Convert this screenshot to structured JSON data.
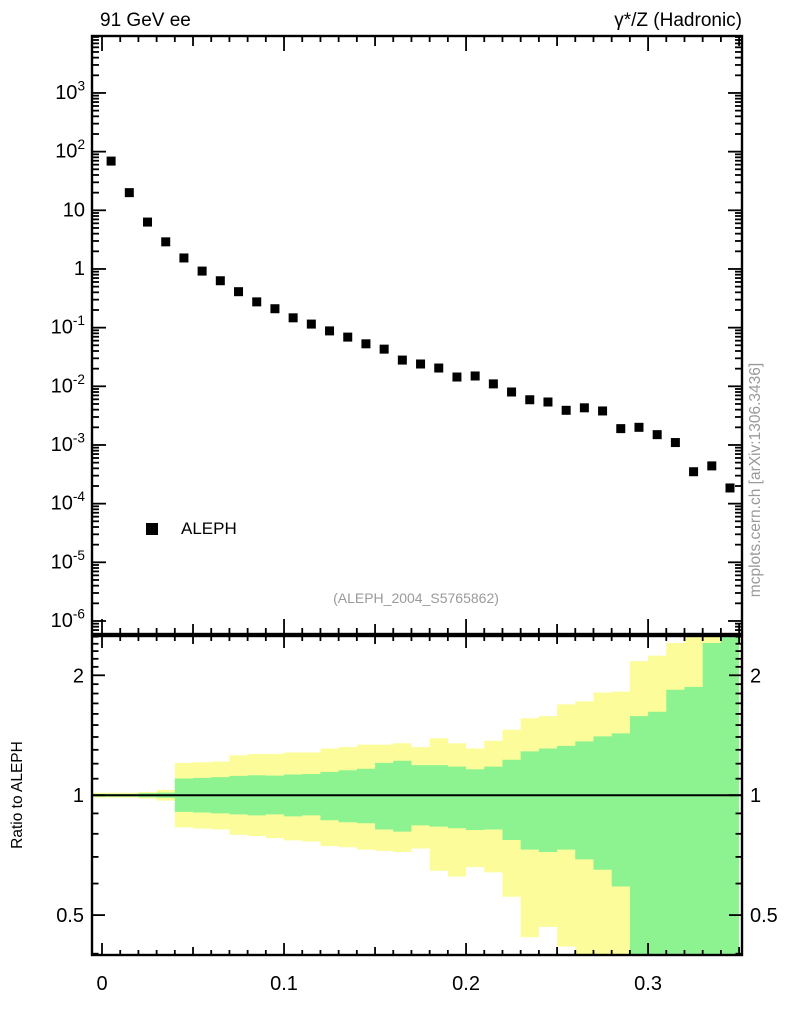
{
  "header": {
    "left_title": "91 GeV ee",
    "right_title": "γ*/Z (Hadronic)"
  },
  "legend": {
    "entries": [
      {
        "label": "ALEPH",
        "marker": "filled-square",
        "color": "#000000"
      }
    ]
  },
  "watermarks": {
    "analysis": "(ALEPH_2004_S5765862)",
    "mcplots": "mcplots.cern.ch [arXiv:1306.3436]"
  },
  "colors": {
    "data": "#000000",
    "frame": "#000000",
    "band_outer_yellow": "#fcfc9a",
    "band_inner_green": "#8df391",
    "muted_text": "#9a9a9a"
  },
  "chart_data": [
    {
      "type": "scatter",
      "panel": "main",
      "xscale": "linear",
      "yscale": "log",
      "xlim": [
        -0.0055,
        0.3516
      ],
      "ylim": [
        6e-07,
        9355
      ],
      "grid": false,
      "bin_width": 0.01,
      "xticks": [
        {
          "value": 0,
          "label": "0"
        },
        {
          "value": 0.1,
          "label": "0.1"
        },
        {
          "value": 0.2,
          "label": "0.2"
        },
        {
          "value": 0.3,
          "label": "0.3"
        }
      ],
      "yticks": [
        {
          "value": 1000,
          "label": "10^3"
        },
        {
          "value": 100,
          "label": "10^2"
        },
        {
          "value": 10,
          "label": "10"
        },
        {
          "value": 1,
          "label": "1"
        },
        {
          "value": 0.1,
          "label": "10^-1"
        },
        {
          "value": 0.01,
          "label": "10^-2"
        },
        {
          "value": 0.001,
          "label": "10^-3"
        },
        {
          "value": 0.0001,
          "label": "10^-4"
        },
        {
          "value": 1e-05,
          "label": "10^-5"
        },
        {
          "value": 1e-06,
          "label": "10^-6"
        }
      ],
      "series": [
        {
          "name": "ALEPH",
          "marker": "filled-square",
          "color": "#000000",
          "x": [
            0.005,
            0.015,
            0.025,
            0.035,
            0.045,
            0.055,
            0.065,
            0.075,
            0.085,
            0.095,
            0.105,
            0.115,
            0.125,
            0.135,
            0.145,
            0.155,
            0.165,
            0.175,
            0.185,
            0.195,
            0.205,
            0.215,
            0.225,
            0.235,
            0.245,
            0.255,
            0.265,
            0.275,
            0.285,
            0.295,
            0.305,
            0.315,
            0.325,
            0.335,
            0.345
          ],
          "y": [
            69,
            20,
            6.3,
            2.9,
            1.54,
            0.92,
            0.63,
            0.41,
            0.275,
            0.21,
            0.147,
            0.115,
            0.088,
            0.069,
            0.053,
            0.043,
            0.028,
            0.024,
            0.0205,
            0.0144,
            0.015,
            0.011,
            0.008,
            0.0059,
            0.0054,
            0.0039,
            0.0043,
            0.0038,
            0.0019,
            0.002,
            0.0015,
            0.0011,
            0.00035,
            0.00044,
            0.000185
          ]
        }
      ]
    },
    {
      "type": "area",
      "panel": "ratio",
      "ylabel": "Ratio to ALEPH",
      "yscale": "log",
      "ylim": [
        0.397,
        2.51
      ],
      "reference_line": 1,
      "yticks": [
        {
          "value": 2,
          "label": "2"
        },
        {
          "value": 1,
          "label": "1"
        },
        {
          "value": 0.5,
          "label": "0.5"
        }
      ],
      "bin_edges": [
        0,
        0.01,
        0.02,
        0.03,
        0.04,
        0.05,
        0.06,
        0.07,
        0.08,
        0.09,
        0.1,
        0.11,
        0.12,
        0.13,
        0.14,
        0.15,
        0.16,
        0.17,
        0.18,
        0.19,
        0.2,
        0.21,
        0.22,
        0.23,
        0.24,
        0.25,
        0.26,
        0.27,
        0.28,
        0.29,
        0.3,
        0.31,
        0.32,
        0.33,
        0.34,
        0.35
      ],
      "bands": [
        {
          "name": "outer-uncertainty-band",
          "color": "#fcfc9a",
          "lo": [
            0.986,
            0.986,
            0.981,
            0.969,
            0.83,
            0.825,
            0.82,
            0.795,
            0.79,
            0.78,
            0.77,
            0.765,
            0.745,
            0.74,
            0.73,
            0.725,
            0.72,
            0.735,
            0.646,
            0.625,
            0.66,
            0.64,
            0.556,
            0.44,
            0.467,
            0.417,
            0.35,
            0.35,
            0.35,
            0.35,
            0.35,
            0.35,
            0.35,
            0.35,
            0.35
          ],
          "hi": [
            1.014,
            1.014,
            1.019,
            1.031,
            1.205,
            1.21,
            1.215,
            1.26,
            1.27,
            1.27,
            1.28,
            1.28,
            1.31,
            1.32,
            1.34,
            1.34,
            1.35,
            1.32,
            1.39,
            1.35,
            1.31,
            1.37,
            1.46,
            1.56,
            1.58,
            1.69,
            1.72,
            1.81,
            1.82,
            2.17,
            2.24,
            2.41,
            2.6,
            2.6,
            2.6
          ]
        },
        {
          "name": "inner-uncertainty-band",
          "color": "#8df391",
          "lo": [
            0.992,
            0.992,
            0.988,
            0.985,
            0.908,
            0.905,
            0.9,
            0.895,
            0.89,
            0.895,
            0.885,
            0.89,
            0.865,
            0.855,
            0.85,
            0.82,
            0.81,
            0.84,
            0.834,
            0.826,
            0.818,
            0.82,
            0.772,
            0.73,
            0.72,
            0.73,
            0.69,
            0.65,
            0.59,
            0.35,
            0.35,
            0.35,
            0.35,
            0.35,
            0.35
          ],
          "hi": [
            1.008,
            1.008,
            1.012,
            1.015,
            1.101,
            1.105,
            1.11,
            1.118,
            1.122,
            1.12,
            1.127,
            1.13,
            1.144,
            1.155,
            1.165,
            1.205,
            1.22,
            1.19,
            1.19,
            1.18,
            1.162,
            1.18,
            1.227,
            1.288,
            1.31,
            1.33,
            1.365,
            1.405,
            1.43,
            1.58,
            1.62,
            1.84,
            1.87,
            2.41,
            2.6
          ]
        }
      ]
    }
  ]
}
